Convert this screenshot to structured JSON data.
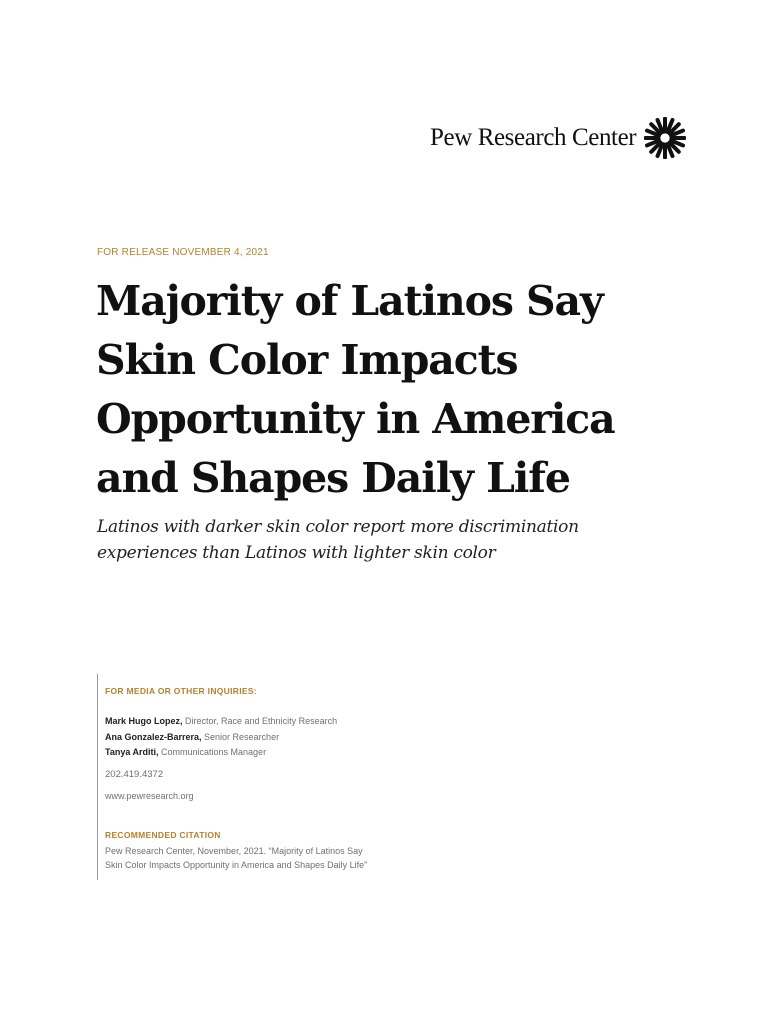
{
  "header": {
    "brand_name": "Pew Research Center",
    "logo_icon": "pew-sunburst-icon"
  },
  "release": "FOR RELEASE NOVEMBER 4, 2021",
  "title_lines": [
    "Majority of Latinos Say",
    "Skin Color Impacts",
    "Opportunity in America",
    "and Shapes Daily Life"
  ],
  "subtitle_lines": [
    "Latinos with darker skin color report more discrimination",
    "experiences than Latinos with lighter skin color"
  ],
  "inquiries": {
    "label": "FOR MEDIA OR OTHER INQUIRIES:",
    "contacts": [
      {
        "name": "Mark Hugo Lopez,",
        "role": " Director, Race and Ethnicity Research"
      },
      {
        "name": "Ana Gonzalez-Barrera,",
        "role": " Senior Researcher"
      },
      {
        "name": "Tanya Arditi,",
        "role": " Communications Manager"
      }
    ],
    "phone": "202.419.4372",
    "website": "www.pewresearch.org"
  },
  "citation": {
    "label": "RECOMMENDED CITATION",
    "lines": [
      "Pew Research Center, November, 2021. “Majority of Latinos Say",
      "Skin Color Impacts Opportunity in America and Shapes Daily Life”"
    ]
  },
  "colors": {
    "accent": "#b5822b",
    "text": "#111111",
    "muted": "#707070"
  }
}
